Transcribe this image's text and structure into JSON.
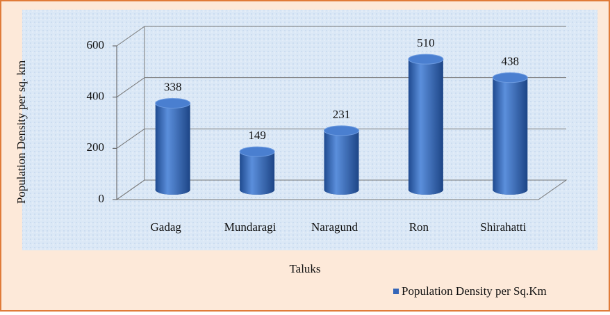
{
  "chart_data": {
    "type": "bar",
    "categories": [
      "Gadag",
      "Mundaragi",
      "Naragund",
      "Ron",
      "Shirahatti"
    ],
    "series": [
      {
        "name": "Population Density per Sq.Km",
        "color": "#3566b8",
        "values": [
          338,
          149,
          231,
          510,
          438
        ]
      }
    ],
    "ylim": [
      0,
      600
    ],
    "yticks": [
      0,
      200,
      400,
      600
    ],
    "grid": true,
    "y_label": "Population Density per sq. km",
    "x_label": "Taluks",
    "legend": "bottom-right"
  }
}
